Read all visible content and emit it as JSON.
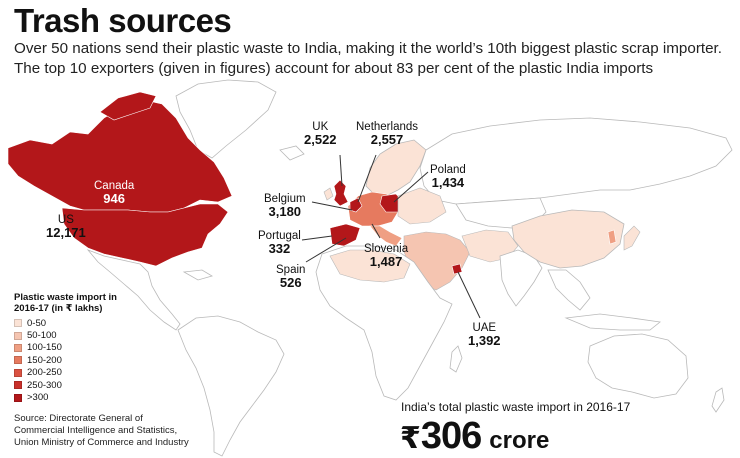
{
  "title": "Trash sources",
  "subtitle": "Over 50 nations send their plastic waste to India, making it the world’s 10th biggest plastic scrap importer. The top 10 exporters (given in figures) account for about 83 per cent of the plastic India imports",
  "colors": {
    "land": "#ffffff",
    "border": "#b9b9b9",
    "scale": [
      "#fbe3d6",
      "#f5c5b1",
      "#ef9f83",
      "#e67a5f",
      "#da5241",
      "#c9302a",
      "#b3171a"
    ]
  },
  "exporters": [
    {
      "name": "US",
      "value": "12,171",
      "category": ">300"
    },
    {
      "name": "Canada",
      "value": "946",
      "category": ">300"
    },
    {
      "name": "UK",
      "value": "2,522",
      "category": ">300"
    },
    {
      "name": "Netherlands",
      "value": "2,557",
      "category": ">300"
    },
    {
      "name": "Poland",
      "value": "1,434",
      "category": ">300"
    },
    {
      "name": "Belgium",
      "value": "3,180",
      "category": ">300"
    },
    {
      "name": "Portugal",
      "value": "332",
      "category": ">300"
    },
    {
      "name": "Spain",
      "value": "526",
      "category": ">300"
    },
    {
      "name": "Slovenia",
      "value": "1,487",
      "category": ">300"
    },
    {
      "name": "UAE",
      "value": "1,392",
      "category": ">300"
    }
  ],
  "legend": {
    "title": "Plastic waste import in 2016-17 (in ₹ lakhs)",
    "items": [
      {
        "label": "0-50",
        "color": "#fbe3d6"
      },
      {
        "label": "50-100",
        "color": "#f5c5b1"
      },
      {
        "label": "100-150",
        "color": "#ef9f83"
      },
      {
        "label": "150-200",
        "color": "#e67a5f"
      },
      {
        "label": "200-250",
        "color": "#da5241"
      },
      {
        "label": "250-300",
        "color": "#c9302a"
      },
      {
        "label": ">300",
        "color": "#b3171a"
      }
    ]
  },
  "source": "Source: Directorate General of Commercial Intelligence and Statistics, Union Ministry of Commerce and Industry",
  "total": {
    "caption": "India’s total plastic waste import in 2016-17",
    "currency": "₹",
    "value": "306",
    "unit": "crore"
  }
}
